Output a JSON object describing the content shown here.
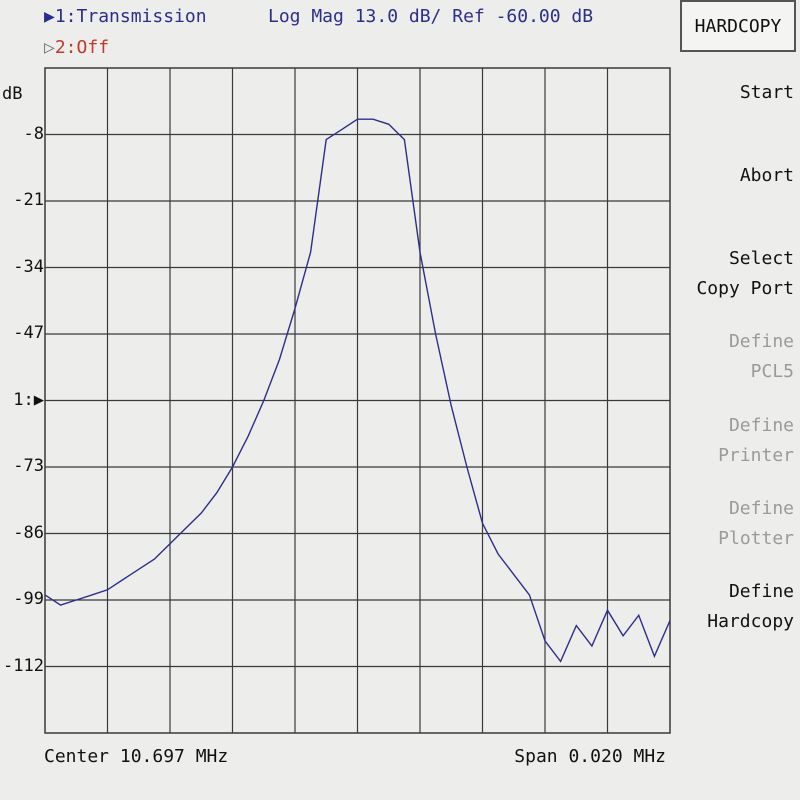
{
  "header": {
    "channel1_marker": "▶",
    "channel1": "1:Transmission",
    "channel2_marker": "▷",
    "channel2": "2:Off",
    "format": "Log Mag  13.0 dB/ Ref -60.00 dB"
  },
  "y_axis": {
    "unit": "dB",
    "ticks": [
      "-8",
      "-21",
      "-34",
      "-47",
      "1:▶",
      "-73",
      "-86",
      "-99",
      "-112"
    ]
  },
  "footer": {
    "center": "Center 10.697 MHz",
    "span": "Span 0.020 MHz"
  },
  "menu": {
    "title": "HARDCOPY",
    "items": [
      {
        "label": "Start",
        "enabled": true
      },
      {
        "label": "Abort",
        "enabled": true
      },
      {
        "label": "Select\nCopy Port",
        "enabled": true
      },
      {
        "label": "Define\nPCL5",
        "enabled": false
      },
      {
        "label": "Define\nPrinter",
        "enabled": false
      },
      {
        "label": "Define\nPlotter",
        "enabled": false
      },
      {
        "label": "Define\nHardcopy",
        "enabled": true
      }
    ]
  },
  "colors": {
    "trace": "#2c2f8a",
    "grid": "#3a3a3a",
    "channel2": "#c0392b",
    "disabled": "#9a9a9a"
  },
  "chart_data": {
    "type": "line",
    "title": "",
    "xlabel": "",
    "ylabel": "dB",
    "x_center_mhz": 10.697,
    "x_span_mhz": 0.02,
    "xlim": [
      10.687,
      10.707
    ],
    "ylim": [
      -125,
      5
    ],
    "y_ticks": [
      -8,
      -21,
      -34,
      -47,
      -60,
      -73,
      -86,
      -99,
      -112
    ],
    "reference_level": -60.0,
    "scale_db_per_div": 13.0,
    "grid": true,
    "series": [
      {
        "x": [
          10.687,
          10.6875,
          10.688,
          10.6885,
          10.689,
          10.6895,
          10.69,
          10.6905,
          10.691,
          10.6915,
          10.692,
          10.6925,
          10.693,
          10.6935,
          10.694,
          10.6945,
          10.695,
          10.6955,
          10.696,
          10.6965,
          10.697,
          10.6975,
          10.698,
          10.6985,
          10.699,
          10.6995,
          10.7,
          10.7005,
          10.701,
          10.7015,
          10.702,
          10.7025,
          10.703,
          10.7035,
          10.704,
          10.7045,
          10.705,
          10.7055,
          10.706,
          10.7065,
          10.707
        ],
        "y": [
          -98,
          -100,
          -99,
          -98,
          -97,
          -95,
          -93,
          -91,
          -88,
          -85,
          -82,
          -78,
          -73,
          -67,
          -60,
          -52,
          -42,
          -31,
          -9,
          -7,
          -5,
          -5,
          -6,
          -9,
          -31,
          -47,
          -61,
          -73,
          -84,
          -90,
          -94,
          -98,
          -107,
          -111,
          -104,
          -108,
          -101,
          -106,
          -102,
          -110,
          -103
        ]
      }
    ]
  }
}
